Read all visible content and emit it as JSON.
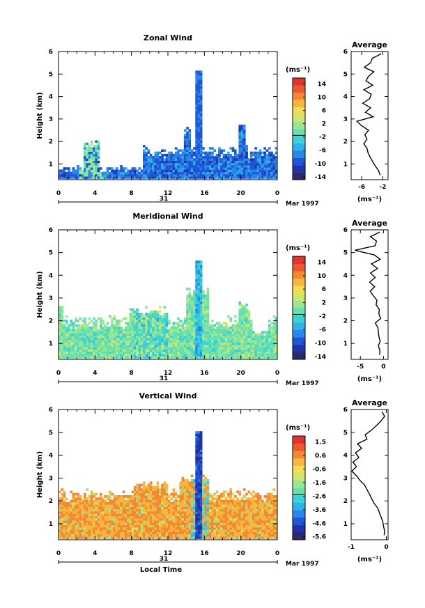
{
  "chart_data": [
    {
      "type": "heatmap",
      "title": "Zonal Wind",
      "ylabel": "Height (km)",
      "xticks": [
        "0",
        "4",
        "8",
        "12",
        "16",
        "20",
        "0"
      ],
      "yticks": [
        "1",
        "2",
        "3",
        "4",
        "5",
        "6"
      ],
      "xlim": [
        0,
        24
      ],
      "ylim": [
        0.3,
        6
      ],
      "date_day": "31",
      "date_month": "Mar 1997",
      "colorbar_unit": "(ms⁻¹)",
      "colorbar_ticks": [
        "14",
        "10",
        "6",
        "2",
        "-2",
        "-6",
        "-10",
        "-14"
      ],
      "colorbar_range": [
        -16,
        16
      ],
      "average": {
        "title": "Average",
        "xlabel": "(ms⁻¹)",
        "xticks": [
          "-6",
          "-2"
        ],
        "xlim": [
          -8,
          -1
        ],
        "height": [
          0.5,
          0.7,
          0.9,
          1.1,
          1.3,
          1.5,
          1.7,
          1.9,
          2.1,
          2.3,
          2.5,
          2.7,
          2.9,
          3.1,
          3.3,
          3.5,
          3.7,
          3.9,
          4.1,
          4.3,
          4.5,
          4.7,
          4.9,
          5.1,
          5.3,
          5.5,
          5.7,
          5.9
        ],
        "value": [
          -2.5,
          -2.8,
          -3.4,
          -3.9,
          -4.4,
          -4.8,
          -5.0,
          -5.6,
          -5.0,
          -5.4,
          -4.7,
          -6.0,
          -6.9,
          -3.8,
          -5.3,
          -4.3,
          -5.8,
          -4.5,
          -4.2,
          -5.6,
          -3.9,
          -5.2,
          -4.7,
          -3.7,
          -5.5,
          -4.3,
          -4.0,
          -2.3
        ]
      }
    },
    {
      "type": "heatmap",
      "title": "Meridional Wind",
      "ylabel": "Height (km)",
      "xticks": [
        "0",
        "4",
        "8",
        "12",
        "16",
        "20",
        "0"
      ],
      "yticks": [
        "1",
        "2",
        "3",
        "4",
        "5",
        "6"
      ],
      "xlim": [
        0,
        24
      ],
      "ylim": [
        0.3,
        6
      ],
      "date_day": "31",
      "date_month": "Mar 1997",
      "colorbar_unit": "(ms⁻¹)",
      "colorbar_ticks": [
        "14",
        "10",
        "6",
        "2",
        "-2",
        "-6",
        "-10",
        "-14"
      ],
      "colorbar_range": [
        -16,
        16
      ],
      "average": {
        "title": "Average",
        "xlabel": "(ms⁻¹)",
        "xticks": [
          "-5",
          "0"
        ],
        "xlim": [
          -7,
          1
        ],
        "height": [
          0.5,
          0.7,
          0.9,
          1.1,
          1.3,
          1.5,
          1.7,
          1.9,
          2.1,
          2.3,
          2.5,
          2.7,
          2.9,
          3.1,
          3.3,
          3.5,
          3.7,
          3.9,
          4.1,
          4.3,
          4.5,
          4.7,
          4.9,
          5.1,
          5.3,
          5.5,
          5.7,
          5.9
        ],
        "value": [
          -0.8,
          -0.8,
          -1.1,
          -0.7,
          -1.0,
          -1.1,
          -1.2,
          -1.8,
          -0.6,
          -1.0,
          -0.9,
          -1.6,
          -1.4,
          -2.2,
          -2.9,
          -1.9,
          -3.0,
          -1.8,
          -2.8,
          -1.3,
          -2.6,
          -0.7,
          -2.0,
          -6.2,
          -1.8,
          -1.5,
          -2.8,
          -0.8
        ]
      }
    },
    {
      "type": "heatmap",
      "title": "Vertical Wind",
      "ylabel": "Height (km)",
      "xlabel": "Local Time",
      "xticks": [
        "0",
        "4",
        "8",
        "12",
        "16",
        "20",
        "0"
      ],
      "yticks": [
        "1",
        "2",
        "3",
        "4",
        "5",
        "6"
      ],
      "xlim": [
        0,
        24
      ],
      "ylim": [
        0.3,
        6
      ],
      "date_day": "31",
      "date_month": "Mar 1997",
      "colorbar_unit": "(ms⁻¹)",
      "colorbar_ticks": [
        "1.5",
        "0.6",
        "-0.6",
        "-1.6",
        "-2.6",
        "-3.6",
        "-4.6",
        "-5.6"
      ],
      "colorbar_range": [
        -6.1,
        2.0
      ],
      "average": {
        "title": "Average",
        "xlabel": "(ms⁻¹)",
        "xticks": [
          "-1",
          "0"
        ],
        "xlim": [
          -1,
          0.05
        ],
        "height": [
          0.5,
          0.7,
          0.9,
          1.1,
          1.3,
          1.5,
          1.7,
          1.9,
          2.1,
          2.3,
          2.5,
          2.7,
          2.9,
          3.1,
          3.3,
          3.5,
          3.7,
          3.9,
          4.1,
          4.3,
          4.5,
          4.7,
          4.9,
          5.1,
          5.3,
          5.5,
          5.7,
          5.9
        ],
        "value": [
          -0.06,
          -0.05,
          -0.08,
          -0.1,
          -0.15,
          -0.2,
          -0.25,
          -0.35,
          -0.42,
          -0.48,
          -0.55,
          -0.62,
          -0.75,
          -0.85,
          -0.98,
          -0.85,
          -0.95,
          -0.78,
          -0.88,
          -0.7,
          -0.82,
          -0.55,
          -0.6,
          -0.42,
          -0.28,
          -0.15,
          -0.05,
          -0.12
        ]
      }
    }
  ]
}
